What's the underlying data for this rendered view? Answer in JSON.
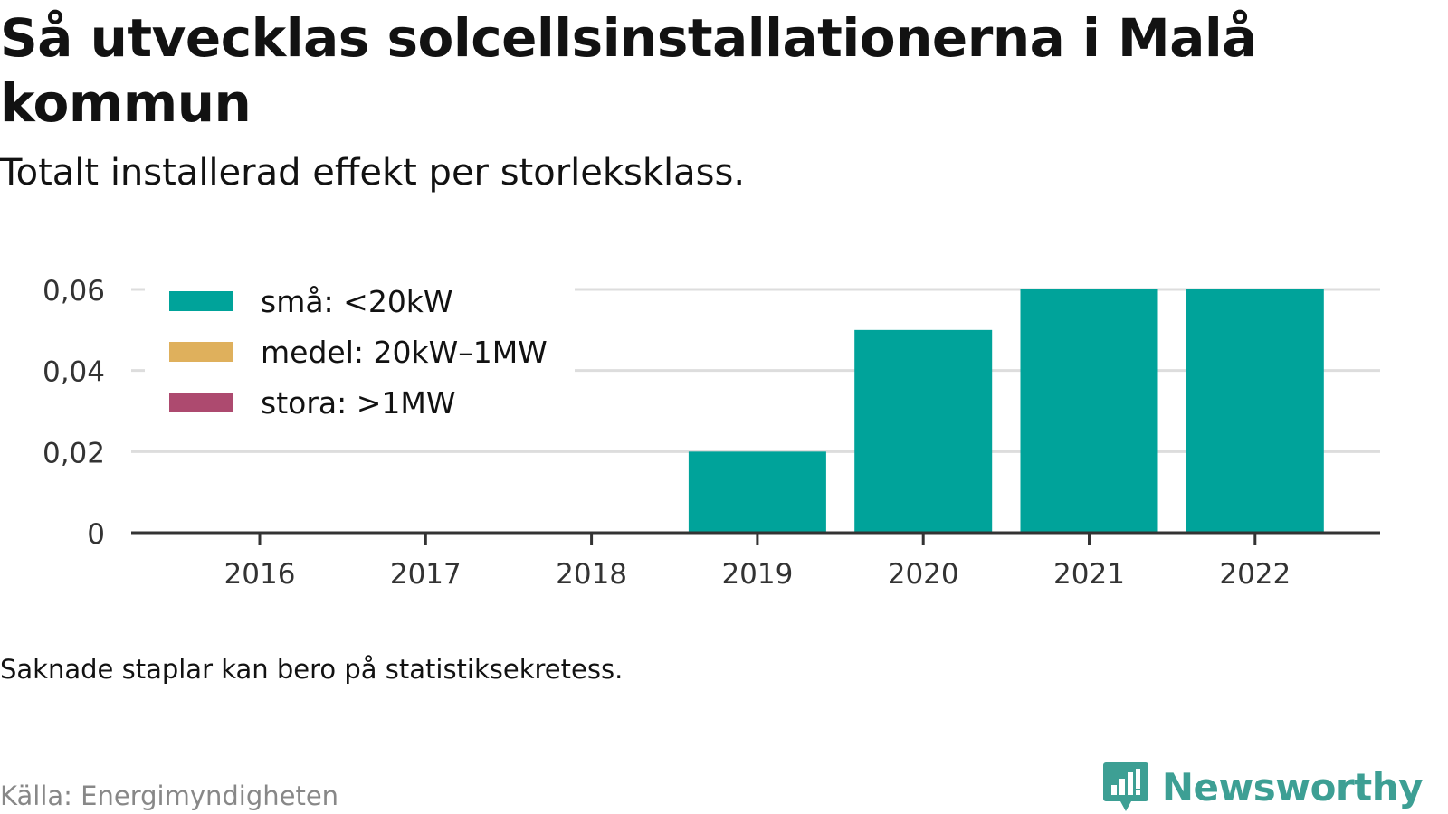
{
  "title": "Så utvecklas solcellsinstallationerna i Malå kommun",
  "subtitle": "Totalt installerad effekt per storleksklass.",
  "note": "Saknade staplar kan bero på statistiksekretess.",
  "source": "Källa: Energimyndigheten",
  "brand": {
    "name": "Newsworthy",
    "logo_icon": "bar-chart-speech-bubble-icon",
    "color": "#3d9f94"
  },
  "colors": {
    "small": "#00a39a",
    "medium": "#dfb05c",
    "large": "#ad4a6f",
    "grid": "#dddddd",
    "axis": "#333333",
    "tick_text": "#333333"
  },
  "chart_data": {
    "type": "bar",
    "stacked": true,
    "categories": [
      "2016",
      "2017",
      "2018",
      "2019",
      "2020",
      "2021",
      "2022"
    ],
    "series": [
      {
        "name": "små: <20kW",
        "color": "#00a39a",
        "values": [
          0,
          0,
          0,
          0.02,
          0.05,
          0.06,
          0.06
        ]
      },
      {
        "name": "medel: 20kW–1MW",
        "color": "#dfb05c",
        "values": [
          0,
          0,
          0,
          0,
          0,
          0,
          0
        ]
      },
      {
        "name": "stora: >1MW",
        "color": "#ad4a6f",
        "values": [
          0,
          0,
          0,
          0,
          0,
          0,
          0
        ]
      }
    ],
    "ylim": [
      0,
      0.06
    ],
    "yticks": [
      0,
      0.02,
      0.04,
      0.06
    ],
    "ytick_labels": [
      "0",
      "0,02",
      "0,04",
      "0,06"
    ],
    "xlabel": "",
    "ylabel": "",
    "grid": true,
    "legend_position": "top-left"
  }
}
